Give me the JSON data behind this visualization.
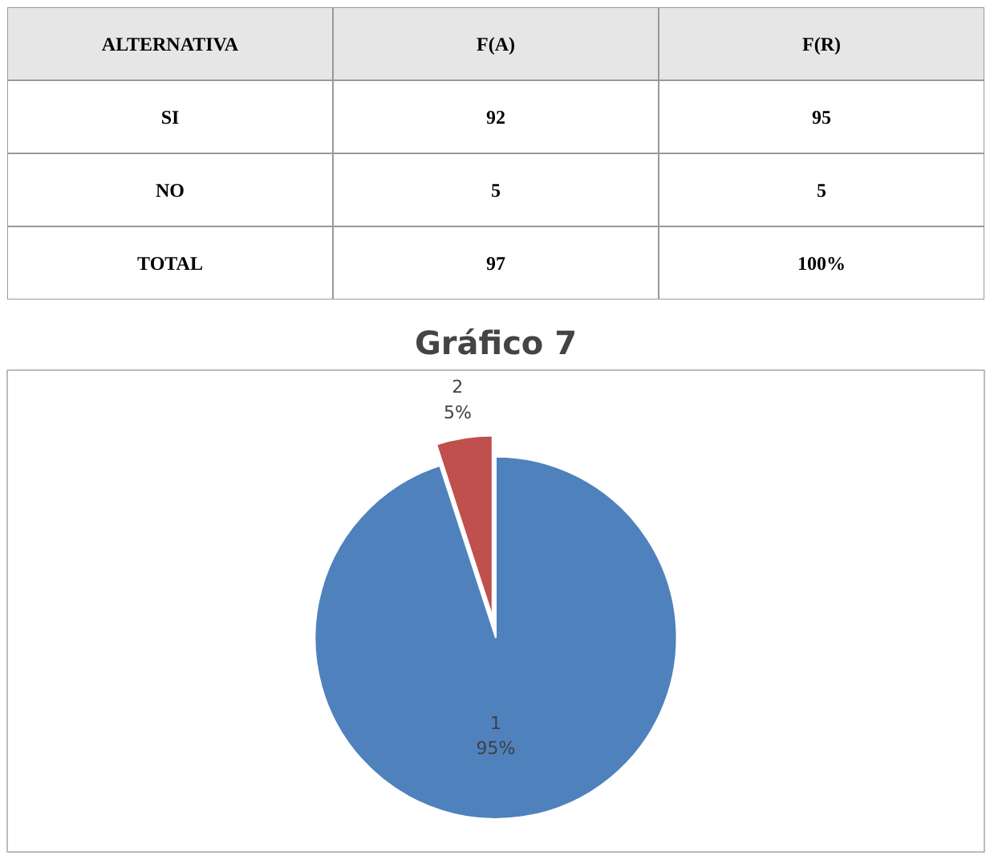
{
  "chart_data": [
    {
      "type": "other",
      "annotations": [
        "ALTERNATIVA",
        "F(A)",
        "F(R)",
        "SI",
        "92",
        "95",
        "NO",
        "5",
        "5",
        "TOTAL",
        "97",
        "100%"
      ]
    },
    {
      "type": "pie",
      "title": "Gráfico 7",
      "categories": [
        "1",
        "2"
      ],
      "values": [
        95,
        5
      ],
      "colors": [
        "#4f81bd",
        "#c0504d"
      ],
      "value_labels": [
        "95%",
        "5%"
      ]
    }
  ]
}
